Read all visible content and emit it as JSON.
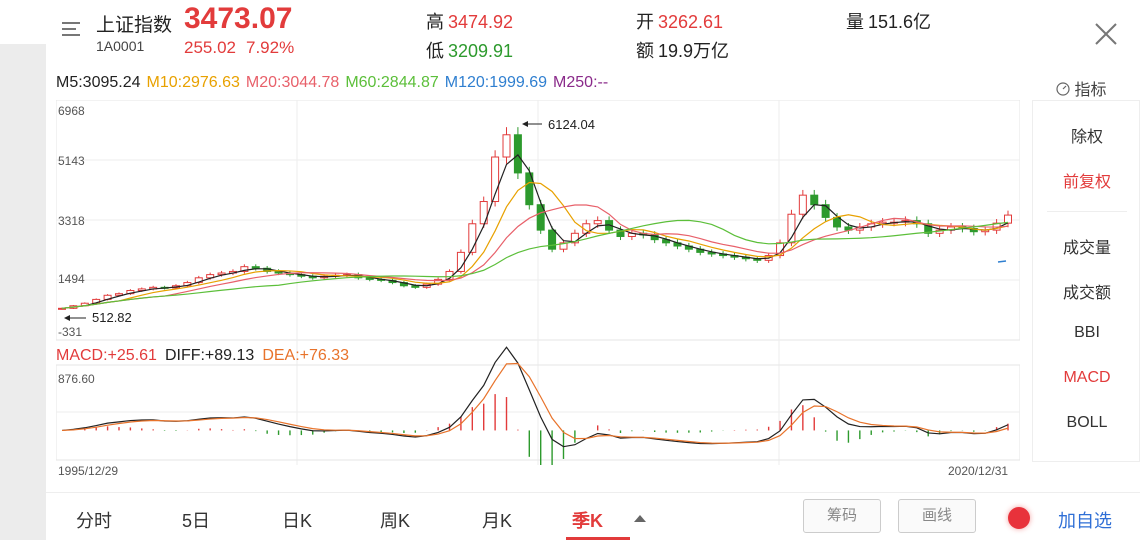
{
  "header": {
    "name": "上证指数",
    "code": "1A0001",
    "price": "3473.07",
    "change": "255.02",
    "change_pct": "7.92%",
    "high_label": "高",
    "high": "3474.92",
    "low_label": "低",
    "low": "3209.91",
    "open_label": "开",
    "open": "3262.61",
    "amount_label": "额",
    "amount": "19.9万亿",
    "volume_label": "量",
    "volume": "151.6亿"
  },
  "ma": {
    "m5": "M5:3095.24",
    "m10": "M10:2976.63",
    "m20": "M20:3044.78",
    "m60": "M60:2844.87",
    "m120": "M120:1999.69",
    "m250": "M250:--"
  },
  "indicator_button": "指标",
  "kline": {
    "y_ticks": [
      "6968",
      "5143",
      "3318",
      "1494",
      "-331"
    ],
    "high_marker": "6124.04",
    "low_marker": "512.82"
  },
  "macd": {
    "macd": "MACD:+25.61",
    "diff": "DIFF:+89.13",
    "dea": "DEA:+76.33",
    "y_top": "876.60",
    "date_start": "1995/12/29",
    "date_end": "2020/12/31"
  },
  "side_menu": [
    "除权",
    "前复权",
    "成交量",
    "成交额",
    "BBI",
    "MACD",
    "BOLL"
  ],
  "tabs": [
    "分时",
    "5日",
    "日K",
    "周K",
    "月K",
    "季K"
  ],
  "tools": {
    "chips": "筹码",
    "draw": "画线",
    "add": "加自选"
  },
  "colors": {
    "up": "#e23b3b",
    "down": "#2d9a2d",
    "m5": "#222222",
    "m10": "#e8a100",
    "m20": "#e8606a",
    "m60": "#5cbf3a",
    "m120": "#2f7fd0",
    "m250": "#8a2a8a"
  },
  "chart_data": {
    "type": "candlestick",
    "y_range": [
      -331,
      6968
    ],
    "closes": [
      540,
      620,
      700,
      820,
      950,
      1000,
      1100,
      1150,
      1200,
      1180,
      1250,
      1350,
      1500,
      1600,
      1650,
      1700,
      1850,
      1800,
      1700,
      1650,
      1600,
      1550,
      1500,
      1550,
      1580,
      1600,
      1500,
      1450,
      1420,
      1350,
      1250,
      1200,
      1300,
      1450,
      1700,
      2300,
      3200,
      3900,
      5300,
      6000,
      4800,
      3800,
      3000,
      2400,
      2600,
      2900,
      3200,
      3300,
      3000,
      2800,
      2900,
      2850,
      2700,
      2600,
      2500,
      2400,
      2300,
      2250,
      2200,
      2150,
      2100,
      2050,
      2200,
      2600,
      3500,
      4100,
      3800,
      3400,
      3100,
      3000,
      3100,
      3200,
      3250,
      3250,
      3300,
      3200,
      2900,
      3000,
      3100,
      3050,
      2950,
      3000,
      3220,
      3473
    ],
    "macd_diff_range": [
      -400,
      876.6
    ]
  }
}
